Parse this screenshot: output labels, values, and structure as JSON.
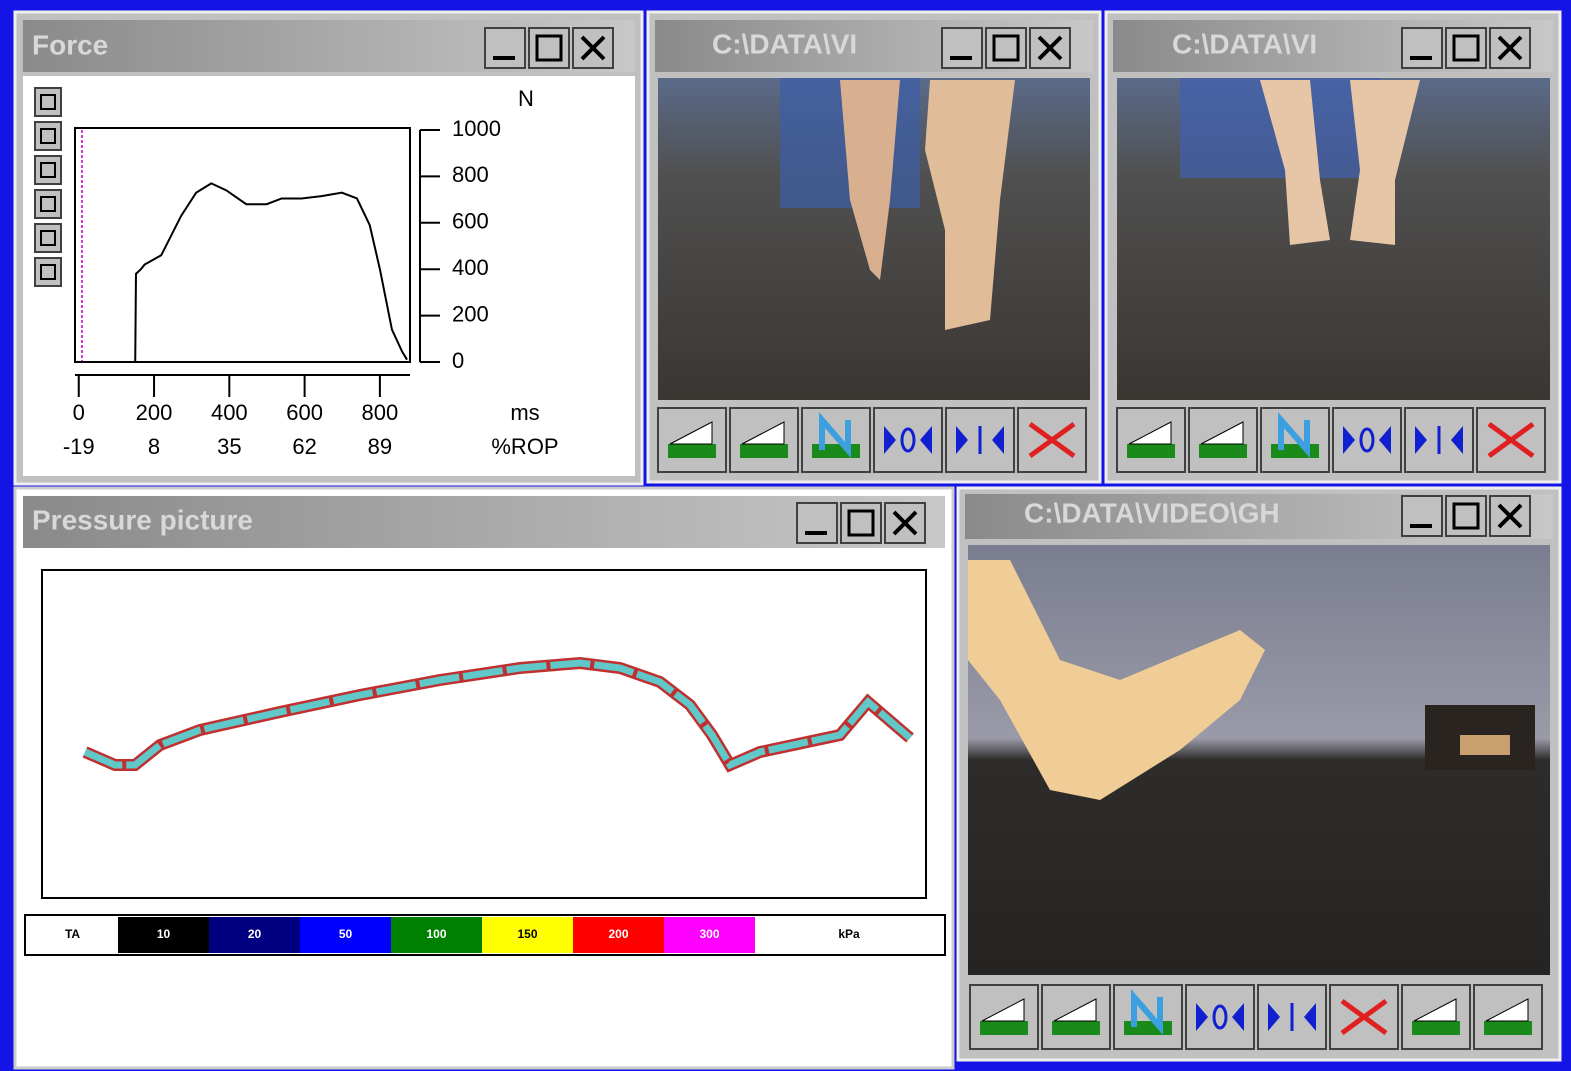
{
  "force_window": {
    "title": "Force",
    "chart": {
      "type": "line",
      "y_unit": "N",
      "x_unit": "ms",
      "x2_unit": "%ROP",
      "x": [
        0,
        150,
        152,
        165,
        175,
        219,
        272,
        312,
        352,
        392,
        445,
        499,
        539,
        592,
        645,
        699,
        739,
        773,
        800,
        832,
        859,
        872
      ],
      "values": [
        0,
        0,
        380,
        400,
        420,
        460,
        630,
        730,
        770,
        740,
        680,
        680,
        705,
        705,
        715,
        730,
        705,
        590,
        400,
        140,
        45,
        10
      ],
      "color": "#000000",
      "xlim": [
        -10,
        880
      ],
      "ylim": [
        0,
        1000
      ],
      "xticks": [
        0,
        200,
        400,
        600,
        800
      ],
      "x2ticks": [
        -19,
        8,
        35,
        62,
        89
      ],
      "yticks": [
        0,
        200,
        400,
        600,
        800,
        1000
      ]
    }
  },
  "video_windows": [
    {
      "title": "C:\\DATA\\VI"
    },
    {
      "title": "C:\\DATA\\VI"
    },
    {
      "title": "C:\\DATA\\VIDEO\\GH"
    }
  ],
  "pressure_window": {
    "title": "Pressure picture",
    "legend": [
      {
        "label": "TA",
        "color": "#ffffff"
      },
      {
        "label": "10",
        "color": "#000000"
      },
      {
        "label": "20",
        "color": "#000080"
      },
      {
        "label": "50",
        "color": "#0000ff"
      },
      {
        "label": "100",
        "color": "#008000"
      },
      {
        "label": "150",
        "color": "#ffff00"
      },
      {
        "label": "200",
        "color": "#ff0000"
      },
      {
        "label": "300",
        "color": "#ff00ff"
      },
      {
        "label": "kPa",
        "color": "#ffffff"
      }
    ]
  }
}
